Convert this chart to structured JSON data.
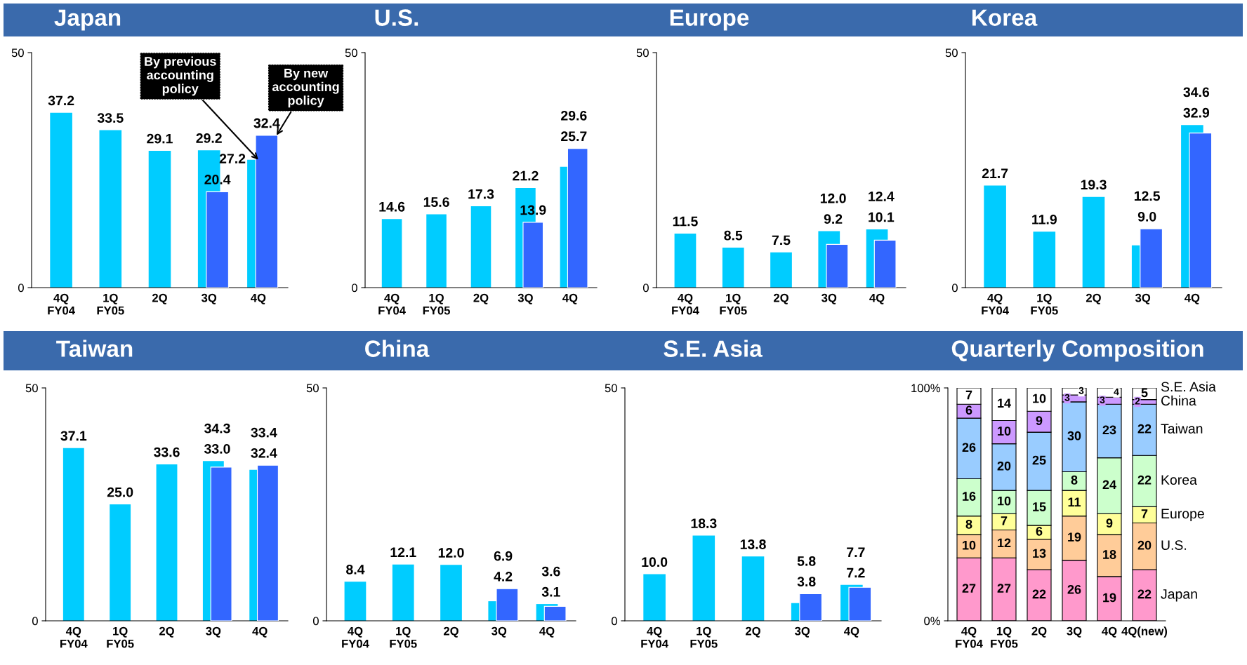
{
  "chart_data": [
    {
      "type": "bar",
      "title": "Japan",
      "categories": [
        "4Q\nFY04",
        "1Q\nFY05",
        "2Q",
        "3Q",
        "4Q"
      ],
      "series": [
        {
          "color": "#00ccff",
          "values": [
            37.2,
            33.5,
            29.1,
            29.2,
            27.2
          ],
          "value_labels": [
            "37.2",
            "33.5",
            "29.1",
            "29.2",
            "27.2"
          ]
        },
        {
          "color": "#3366ff",
          "values": [
            null,
            null,
            null,
            20.4,
            32.4
          ],
          "value_labels": [
            null,
            null,
            null,
            "20.4",
            "32.4"
          ]
        }
      ],
      "ylim": [
        0,
        50
      ],
      "yticks": [
        0,
        50
      ],
      "annotations": [
        {
          "text": "By previous\naccounting\npolicy",
          "x": "4Q",
          "y": 27.2
        },
        {
          "text": "By new\naccounting\npolicy",
          "x": "4Q",
          "y": 32.4
        }
      ]
    },
    {
      "type": "bar",
      "title": "U.S.",
      "categories": [
        "4Q\nFY04",
        "1Q\nFY05",
        "2Q",
        "3Q",
        "4Q"
      ],
      "series": [
        {
          "color": "#00ccff",
          "values": [
            14.6,
            15.6,
            17.3,
            21.2,
            25.7
          ],
          "value_labels": [
            "14.6",
            "15.6",
            "17.3",
            "21.2",
            "25.7"
          ]
        },
        {
          "color": "#3366ff",
          "values": [
            null,
            null,
            null,
            13.9,
            29.6
          ],
          "value_labels": [
            null,
            null,
            null,
            "13.9",
            "29.6"
          ]
        }
      ],
      "ylim": [
        0,
        50
      ],
      "yticks": [
        0,
        50
      ]
    },
    {
      "type": "bar",
      "title": "Europe",
      "categories": [
        "4Q\nFY04",
        "1Q\nFY05",
        "2Q",
        "3Q",
        "4Q"
      ],
      "series": [
        {
          "color": "#00ccff",
          "values": [
            11.5,
            8.5,
            7.5,
            12.0,
            12.4
          ],
          "value_labels": [
            "11.5",
            "8.5",
            "7.5",
            "12.0",
            "12.4"
          ]
        },
        {
          "color": "#3366ff",
          "values": [
            null,
            null,
            null,
            9.2,
            10.1
          ],
          "value_labels": [
            null,
            null,
            null,
            "9.2",
            "10.1"
          ]
        }
      ],
      "ylim": [
        0,
        50
      ],
      "yticks": [
        0,
        50
      ]
    },
    {
      "type": "bar",
      "title": "Korea",
      "categories": [
        "4Q\nFY04",
        "1Q\nFY05",
        "2Q",
        "3Q",
        "4Q"
      ],
      "series": [
        {
          "color": "#00ccff",
          "values": [
            21.7,
            11.9,
            19.3,
            9.0,
            34.6
          ],
          "value_labels": [
            "21.7",
            "11.9",
            "19.3",
            "9.0",
            "34.6"
          ]
        },
        {
          "color": "#3366ff",
          "values": [
            null,
            null,
            null,
            12.5,
            32.9
          ],
          "value_labels": [
            null,
            null,
            null,
            "12.5",
            "32.9"
          ]
        }
      ],
      "ylim": [
        0,
        50
      ],
      "yticks": [
        0,
        50
      ]
    },
    {
      "type": "bar",
      "title": "Taiwan",
      "categories": [
        "4Q\nFY04",
        "1Q\nFY05",
        "2Q",
        "3Q",
        "4Q"
      ],
      "series": [
        {
          "color": "#00ccff",
          "values": [
            37.1,
            25.0,
            33.6,
            34.3,
            32.4
          ],
          "value_labels": [
            "37.1",
            "25.0",
            "33.6",
            "34.3",
            "32.4"
          ]
        },
        {
          "color": "#3366ff",
          "values": [
            null,
            null,
            null,
            33.0,
            33.4
          ],
          "value_labels": [
            null,
            null,
            null,
            "33.0",
            "33.4"
          ]
        }
      ],
      "ylim": [
        0,
        50
      ],
      "yticks": [
        0,
        50
      ]
    },
    {
      "type": "bar",
      "title": "China",
      "categories": [
        "4Q\nFY04",
        "1Q\nFY05",
        "2Q",
        "3Q",
        "4Q"
      ],
      "series": [
        {
          "color": "#00ccff",
          "values": [
            8.4,
            12.1,
            12.0,
            4.2,
            3.6
          ],
          "value_labels": [
            "8.4",
            "12.1",
            "12.0",
            "4.2",
            "3.6"
          ]
        },
        {
          "color": "#3366ff",
          "values": [
            null,
            null,
            null,
            6.9,
            3.1
          ],
          "value_labels": [
            null,
            null,
            null,
            "6.9",
            "3.1"
          ]
        }
      ],
      "ylim": [
        0,
        50
      ],
      "yticks": [
        0,
        50
      ]
    },
    {
      "type": "bar",
      "title": "S.E. Asia",
      "categories": [
        "4Q\nFY04",
        "1Q\nFY05",
        "2Q",
        "3Q",
        "4Q"
      ],
      "series": [
        {
          "color": "#00ccff",
          "values": [
            10.0,
            18.3,
            13.8,
            3.8,
            7.7
          ],
          "value_labels": [
            "10.0",
            "18.3",
            "13.8",
            "3.8",
            "7.7"
          ]
        },
        {
          "color": "#3366ff",
          "values": [
            null,
            null,
            null,
            5.8,
            7.2
          ],
          "value_labels": [
            null,
            null,
            null,
            "5.8",
            "7.2"
          ]
        }
      ],
      "ylim": [
        0,
        50
      ],
      "yticks": [
        0,
        50
      ]
    },
    {
      "type": "bar",
      "title": "Quarterly Composition",
      "stacked": true,
      "categories": [
        "4Q\nFY04",
        "1Q\nFY05",
        "2Q",
        "3Q",
        "4Q",
        "4Q(new)"
      ],
      "series": [
        {
          "name": "Japan",
          "color": "#ff99cc",
          "values": [
            27,
            27,
            22,
            26,
            19,
            22
          ]
        },
        {
          "name": "U.S.",
          "color": "#ffcc99",
          "values": [
            10,
            12,
            13,
            19,
            18,
            20
          ]
        },
        {
          "name": "Europe",
          "color": "#ffff99",
          "values": [
            8,
            7,
            6,
            11,
            9,
            7
          ]
        },
        {
          "name": "Korea",
          "color": "#ccffcc",
          "values": [
            16,
            10,
            15,
            8,
            24,
            22
          ]
        },
        {
          "name": "Taiwan",
          "color": "#99ccff",
          "values": [
            26,
            20,
            25,
            30,
            23,
            22
          ]
        },
        {
          "name": "China",
          "color": "#cc99ff",
          "values": [
            6,
            10,
            9,
            3,
            3,
            2
          ]
        },
        {
          "name": "S.E. Asia",
          "color": "#ffffff",
          "values": [
            7,
            14,
            10,
            3,
            4,
            5
          ]
        }
      ],
      "ylim": [
        0,
        100
      ],
      "yticks": [
        {
          "value": 0,
          "label": "0%"
        },
        {
          "value": 100,
          "label": "100%"
        }
      ],
      "data_labels": true
    }
  ]
}
